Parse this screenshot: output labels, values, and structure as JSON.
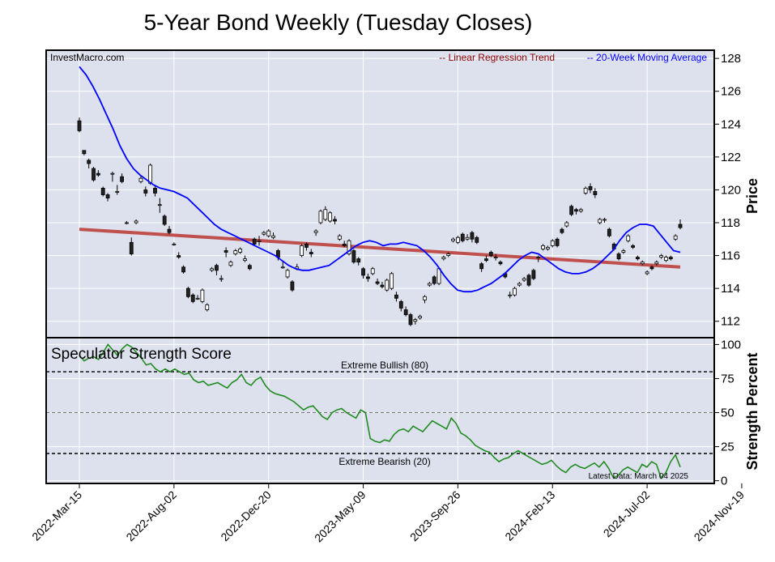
{
  "chart_data": {
    "type": "candlestick",
    "title": "5-Year Bond Weekly (Tuesday Closes)",
    "watermark": "InvestMacro.com",
    "legend": {
      "regression": "-- Linear Regression Trend",
      "ma": "-- 20-Week Moving Average",
      "regression_color": "#8b0000",
      "ma_color": "#0000ff"
    },
    "price_panel": {
      "ylabel": "Price",
      "ylim": [
        111,
        128.5
      ],
      "yticks": [
        112,
        114,
        116,
        118,
        120,
        122,
        124,
        126,
        128
      ],
      "regression": {
        "start": 117.6,
        "end": 115.3
      },
      "candles": [
        {
          "o": 124.2,
          "c": 123.6,
          "h": 124.4,
          "l": 123.5
        },
        {
          "o": 122.4,
          "c": 122.2,
          "h": 122.4,
          "l": 122.1
        },
        {
          "o": 121.8,
          "c": 121.6,
          "h": 121.9,
          "l": 121.3
        },
        {
          "o": 121.3,
          "c": 120.6,
          "h": 121.4,
          "l": 120.5
        },
        {
          "o": 121.0,
          "c": 120.9,
          "h": 121.2,
          "l": 120.8
        },
        {
          "o": 120.1,
          "c": 119.7,
          "h": 120.2,
          "l": 119.6
        },
        {
          "o": 119.7,
          "c": 119.5,
          "h": 119.8,
          "l": 119.3
        },
        {
          "o": 121.0,
          "c": 121.0,
          "h": 121.1,
          "l": 120.5
        },
        {
          "o": 119.9,
          "c": 119.9,
          "h": 120.3,
          "l": 119.7
        },
        {
          "o": 120.8,
          "c": 120.5,
          "h": 121.0,
          "l": 120.4
        },
        {
          "o": 118.0,
          "c": 118.0,
          "h": 118.1,
          "l": 117.9
        },
        {
          "o": 116.8,
          "c": 116.1,
          "h": 117.1,
          "l": 116.0
        },
        {
          "o": 118.0,
          "c": 118.1,
          "h": 118.2,
          "l": 117.9
        },
        {
          "o": 120.5,
          "c": 120.7,
          "h": 120.9,
          "l": 120.4
        },
        {
          "o": 120.0,
          "c": 119.8,
          "h": 120.2,
          "l": 119.6
        },
        {
          "o": 120.4,
          "c": 121.5,
          "h": 121.6,
          "l": 120.3
        },
        {
          "o": 120.1,
          "c": 119.8,
          "h": 120.3,
          "l": 119.6
        },
        {
          "o": 119.1,
          "c": 119.1,
          "h": 119.5,
          "l": 118.6
        },
        {
          "o": 118.4,
          "c": 117.9,
          "h": 118.5,
          "l": 117.8
        },
        {
          "o": 117.6,
          "c": 117.4,
          "h": 117.8,
          "l": 117.3
        },
        {
          "o": 116.7,
          "c": 116.7,
          "h": 116.8,
          "l": 116.6
        },
        {
          "o": 116.0,
          "c": 115.9,
          "h": 116.2,
          "l": 115.8
        },
        {
          "o": 115.3,
          "c": 115.0,
          "h": 115.4,
          "l": 114.9
        },
        {
          "o": 114.0,
          "c": 113.5,
          "h": 114.1,
          "l": 113.4
        },
        {
          "o": 113.6,
          "c": 113.2,
          "h": 113.7,
          "l": 113.1
        },
        {
          "o": 113.4,
          "c": 113.4,
          "h": 113.6,
          "l": 113.3
        },
        {
          "o": 113.2,
          "c": 113.9,
          "h": 114.0,
          "l": 113.1
        },
        {
          "o": 112.7,
          "c": 113.0,
          "h": 113.1,
          "l": 112.6
        },
        {
          "o": 115.1,
          "c": 115.2,
          "h": 115.3,
          "l": 115.0
        },
        {
          "o": 115.4,
          "c": 115.1,
          "h": 115.5,
          "l": 114.8
        },
        {
          "o": 114.6,
          "c": 114.6,
          "h": 114.8,
          "l": 114.4
        },
        {
          "o": 116.3,
          "c": 116.2,
          "h": 116.5,
          "l": 115.9
        },
        {
          "o": 115.4,
          "c": 115.6,
          "h": 115.7,
          "l": 115.3
        },
        {
          "o": 116.1,
          "c": 116.3,
          "h": 116.4,
          "l": 116.0
        },
        {
          "o": 116.2,
          "c": 116.4,
          "h": 116.5,
          "l": 116.1
        },
        {
          "o": 115.7,
          "c": 115.8,
          "h": 116.0,
          "l": 115.6
        },
        {
          "o": 115.4,
          "c": 115.2,
          "h": 115.5,
          "l": 115.1
        },
        {
          "o": 117.0,
          "c": 116.7,
          "h": 117.1,
          "l": 116.6
        },
        {
          "o": 116.9,
          "c": 116.9,
          "h": 117.2,
          "l": 116.6
        },
        {
          "o": 117.3,
          "c": 117.4,
          "h": 117.5,
          "l": 117.2
        },
        {
          "o": 117.2,
          "c": 117.5,
          "h": 117.6,
          "l": 117.1
        },
        {
          "o": 117.1,
          "c": 117.2,
          "h": 117.4,
          "l": 117.0
        },
        {
          "o": 116.3,
          "c": 115.9,
          "h": 116.4,
          "l": 115.7
        },
        {
          "o": 115.3,
          "c": 115.3,
          "h": 115.7,
          "l": 115.2
        },
        {
          "o": 114.7,
          "c": 115.1,
          "h": 115.2,
          "l": 114.6
        },
        {
          "o": 114.4,
          "c": 113.9,
          "h": 114.5,
          "l": 113.8
        },
        {
          "o": 115.2,
          "c": 115.3,
          "h": 115.5,
          "l": 115.1
        },
        {
          "o": 116.0,
          "c": 116.6,
          "h": 116.7,
          "l": 115.9
        },
        {
          "o": 116.7,
          "c": 116.5,
          "h": 116.8,
          "l": 116.3
        },
        {
          "o": 116.2,
          "c": 116.1,
          "h": 116.4,
          "l": 115.9
        },
        {
          "o": 117.4,
          "c": 117.5,
          "h": 117.6,
          "l": 117.2
        },
        {
          "o": 118.0,
          "c": 118.7,
          "h": 118.8,
          "l": 117.9
        },
        {
          "o": 118.2,
          "c": 118.8,
          "h": 119.0,
          "l": 118.1
        },
        {
          "o": 118.1,
          "c": 118.6,
          "h": 118.7,
          "l": 118.0
        },
        {
          "o": 118.2,
          "c": 118.1,
          "h": 118.4,
          "l": 117.9
        },
        {
          "o": 117.0,
          "c": 117.2,
          "h": 117.3,
          "l": 116.9
        },
        {
          "o": 116.7,
          "c": 116.6,
          "h": 116.9,
          "l": 116.5
        },
        {
          "o": 116.1,
          "c": 116.9,
          "h": 117.0,
          "l": 116.0
        },
        {
          "o": 116.3,
          "c": 115.6,
          "h": 116.4,
          "l": 115.5
        },
        {
          "o": 115.8,
          "c": 115.6,
          "h": 115.9,
          "l": 115.4
        },
        {
          "o": 115.2,
          "c": 114.8,
          "h": 115.3,
          "l": 114.6
        },
        {
          "o": 114.7,
          "c": 114.6,
          "h": 114.9,
          "l": 114.4
        },
        {
          "o": 114.9,
          "c": 115.2,
          "h": 115.3,
          "l": 114.8
        },
        {
          "o": 114.4,
          "c": 114.3,
          "h": 114.6,
          "l": 114.2
        },
        {
          "o": 114.2,
          "c": 114.1,
          "h": 114.4,
          "l": 114.0
        },
        {
          "o": 113.9,
          "c": 114.5,
          "h": 114.6,
          "l": 113.8
        },
        {
          "o": 114.0,
          "c": 114.9,
          "h": 115.0,
          "l": 113.9
        },
        {
          "o": 113.6,
          "c": 113.4,
          "h": 113.8,
          "l": 113.2
        },
        {
          "o": 113.2,
          "c": 112.8,
          "h": 113.3,
          "l": 112.6
        },
        {
          "o": 112.7,
          "c": 112.4,
          "h": 112.9,
          "l": 112.3
        },
        {
          "o": 112.4,
          "c": 111.8,
          "h": 112.5,
          "l": 111.7
        },
        {
          "o": 112.0,
          "c": 112.1,
          "h": 112.2,
          "l": 111.8
        },
        {
          "o": 112.2,
          "c": 112.3,
          "h": 112.4,
          "l": 112.1
        },
        {
          "o": 113.3,
          "c": 113.5,
          "h": 113.6,
          "l": 113.1
        },
        {
          "o": 114.2,
          "c": 114.3,
          "h": 114.4,
          "l": 114.1
        },
        {
          "o": 114.7,
          "c": 114.3,
          "h": 114.8,
          "l": 114.2
        },
        {
          "o": 114.3,
          "c": 115.2,
          "h": 115.3,
          "l": 114.2
        },
        {
          "o": 115.8,
          "c": 115.9,
          "h": 116.0,
          "l": 115.7
        },
        {
          "o": 116.0,
          "c": 116.1,
          "h": 116.2,
          "l": 115.9
        },
        {
          "o": 116.9,
          "c": 117.0,
          "h": 117.1,
          "l": 116.8
        },
        {
          "o": 116.8,
          "c": 117.1,
          "h": 117.2,
          "l": 116.7
        },
        {
          "o": 117.3,
          "c": 116.9,
          "h": 117.4,
          "l": 116.8
        },
        {
          "o": 117.0,
          "c": 117.1,
          "h": 117.3,
          "l": 116.9
        },
        {
          "o": 117.4,
          "c": 117.0,
          "h": 117.5,
          "l": 116.8
        },
        {
          "o": 117.1,
          "c": 116.8,
          "h": 117.2,
          "l": 116.7
        },
        {
          "o": 115.5,
          "c": 115.2,
          "h": 115.6,
          "l": 115.0
        },
        {
          "o": 115.8,
          "c": 115.7,
          "h": 116.0,
          "l": 115.6
        },
        {
          "o": 116.2,
          "c": 116.0,
          "h": 116.3,
          "l": 115.9
        },
        {
          "o": 115.9,
          "c": 115.9,
          "h": 116.1,
          "l": 115.7
        },
        {
          "o": 115.6,
          "c": 115.5,
          "h": 115.7,
          "l": 115.4
        },
        {
          "o": 114.9,
          "c": 114.7,
          "h": 115.0,
          "l": 114.6
        },
        {
          "o": 113.6,
          "c": 113.6,
          "h": 113.8,
          "l": 113.4
        },
        {
          "o": 113.6,
          "c": 114.0,
          "h": 114.1,
          "l": 113.5
        },
        {
          "o": 114.2,
          "c": 114.3,
          "h": 114.4,
          "l": 114.1
        },
        {
          "o": 114.5,
          "c": 114.6,
          "h": 114.7,
          "l": 114.4
        },
        {
          "o": 114.8,
          "c": 114.2,
          "h": 114.9,
          "l": 114.1
        },
        {
          "o": 115.1,
          "c": 114.6,
          "h": 115.2,
          "l": 114.5
        },
        {
          "o": 115.9,
          "c": 115.9,
          "h": 116.0,
          "l": 115.6
        },
        {
          "o": 116.4,
          "c": 116.6,
          "h": 116.7,
          "l": 116.3
        },
        {
          "o": 116.4,
          "c": 116.5,
          "h": 116.6,
          "l": 116.3
        },
        {
          "o": 116.6,
          "c": 116.9,
          "h": 117.0,
          "l": 116.5
        },
        {
          "o": 117.0,
          "c": 116.6,
          "h": 117.1,
          "l": 116.5
        },
        {
          "o": 117.6,
          "c": 117.4,
          "h": 117.7,
          "l": 117.3
        },
        {
          "o": 117.8,
          "c": 118.0,
          "h": 118.1,
          "l": 117.7
        },
        {
          "o": 119.0,
          "c": 118.5,
          "h": 119.1,
          "l": 118.4
        },
        {
          "o": 118.8,
          "c": 118.7,
          "h": 118.9,
          "l": 118.5
        },
        {
          "o": 118.7,
          "c": 118.8,
          "h": 118.9,
          "l": 118.6
        },
        {
          "o": 119.8,
          "c": 120.1,
          "h": 120.2,
          "l": 119.7
        },
        {
          "o": 120.2,
          "c": 120.0,
          "h": 120.4,
          "l": 119.8
        },
        {
          "o": 119.9,
          "c": 119.7,
          "h": 120.1,
          "l": 119.5
        },
        {
          "o": 118.0,
          "c": 118.2,
          "h": 118.3,
          "l": 117.9
        },
        {
          "o": 118.2,
          "c": 118.2,
          "h": 118.3,
          "l": 118.0
        },
        {
          "o": 117.6,
          "c": 117.2,
          "h": 117.7,
          "l": 117.1
        },
        {
          "o": 116.7,
          "c": 116.4,
          "h": 116.8,
          "l": 116.3
        },
        {
          "o": 116.1,
          "c": 115.8,
          "h": 116.2,
          "l": 115.7
        },
        {
          "o": 116.2,
          "c": 116.3,
          "h": 116.4,
          "l": 116.1
        },
        {
          "o": 116.9,
          "c": 117.2,
          "h": 117.3,
          "l": 116.8
        },
        {
          "o": 116.6,
          "c": 116.5,
          "h": 116.7,
          "l": 116.4
        },
        {
          "o": 115.9,
          "c": 115.8,
          "h": 116.0,
          "l": 115.7
        },
        {
          "o": 115.5,
          "c": 115.6,
          "h": 115.7,
          "l": 115.4
        },
        {
          "o": 114.9,
          "c": 115.0,
          "h": 115.1,
          "l": 114.8
        },
        {
          "o": 115.3,
          "c": 115.2,
          "h": 115.4,
          "l": 115.1
        },
        {
          "o": 115.5,
          "c": 115.6,
          "h": 115.7,
          "l": 115.4
        },
        {
          "o": 115.9,
          "c": 116.0,
          "h": 116.1,
          "l": 115.8
        },
        {
          "o": 115.7,
          "c": 115.9,
          "h": 116.0,
          "l": 115.6
        },
        {
          "o": 115.9,
          "c": 115.8,
          "h": 116.0,
          "l": 115.7
        },
        {
          "o": 117.0,
          "c": 117.2,
          "h": 117.3,
          "l": 116.9
        },
        {
          "o": 117.9,
          "c": 117.7,
          "h": 118.2,
          "l": 117.6
        }
      ],
      "ma20": [
        127.5,
        127.0,
        126.3,
        125.5,
        124.6,
        123.7,
        122.7,
        121.9,
        121.3,
        120.9,
        120.6,
        120.3,
        120.1,
        120.0,
        119.9,
        119.7,
        119.5,
        119.1,
        118.7,
        118.3,
        117.9,
        117.6,
        117.4,
        117.2,
        117.0,
        116.8,
        116.6,
        116.4,
        116.2,
        116.0,
        115.7,
        115.4,
        115.2,
        115.1,
        115.1,
        115.2,
        115.3,
        115.4,
        115.7,
        116.0,
        116.3,
        116.6,
        116.8,
        116.9,
        116.8,
        116.6,
        116.7,
        116.7,
        116.8,
        116.7,
        116.6,
        116.3,
        115.9,
        115.4,
        114.8,
        114.3,
        113.9,
        113.8,
        113.8,
        113.9,
        114.1,
        114.3,
        114.6,
        114.9,
        115.3,
        115.7,
        116.0,
        116.2,
        116.1,
        115.8,
        115.5,
        115.2,
        115.0,
        114.9,
        114.9,
        115.0,
        115.2,
        115.5,
        115.9,
        116.3,
        116.9,
        117.4,
        117.7,
        117.9,
        117.9,
        117.8,
        117.3,
        116.8,
        116.3,
        116.2
      ]
    },
    "strength_panel": {
      "title": "Speculator Strength Score",
      "ylabel": "Strength Percent",
      "ylim": [
        -2,
        105
      ],
      "yticks": [
        0,
        25,
        50,
        75,
        100
      ],
      "extreme_bullish": {
        "value": 80,
        "label": "Extreme Bullish (80)"
      },
      "extreme_bearish": {
        "value": 20,
        "label": "Extreme Bearish (20)"
      },
      "midline": 50,
      "latest_label": "Latest Data: March 04 2025",
      "values": [
        92,
        88,
        90,
        91,
        89,
        94,
        100,
        96,
        92,
        97,
        100,
        98,
        94,
        90,
        85,
        86,
        82,
        80,
        82,
        80,
        82,
        80,
        78,
        79,
        74,
        72,
        73,
        70,
        71,
        72,
        70,
        68,
        72,
        74,
        78,
        72,
        70,
        74,
        76,
        70,
        66,
        64,
        63,
        62,
        60,
        58,
        55,
        52,
        54,
        55,
        51,
        47,
        45,
        50,
        52,
        53,
        50,
        48,
        46,
        52,
        50,
        31,
        29,
        28,
        30,
        29,
        34,
        37,
        38,
        36,
        40,
        38,
        36,
        40,
        44,
        42,
        40,
        38,
        46,
        42,
        35,
        33,
        30,
        26,
        24,
        22,
        21,
        17,
        14,
        16,
        17,
        20,
        22,
        20,
        18,
        16,
        14,
        12,
        13,
        15,
        11,
        8,
        6,
        10,
        12,
        10,
        9,
        11,
        13,
        10,
        14,
        9,
        2,
        4,
        8,
        10,
        8,
        6,
        12,
        10,
        14,
        12,
        2,
        6,
        14,
        19,
        10
      ],
      "line_color": "#228b22"
    },
    "x_tick_labels": [
      "2022-Mar-15",
      "2022-Aug-02",
      "2022-Dec-20",
      "2023-May-09",
      "2023-Sep-26",
      "2024-Feb-13",
      "2024-Jul-02",
      "2024-Nov-19"
    ]
  }
}
